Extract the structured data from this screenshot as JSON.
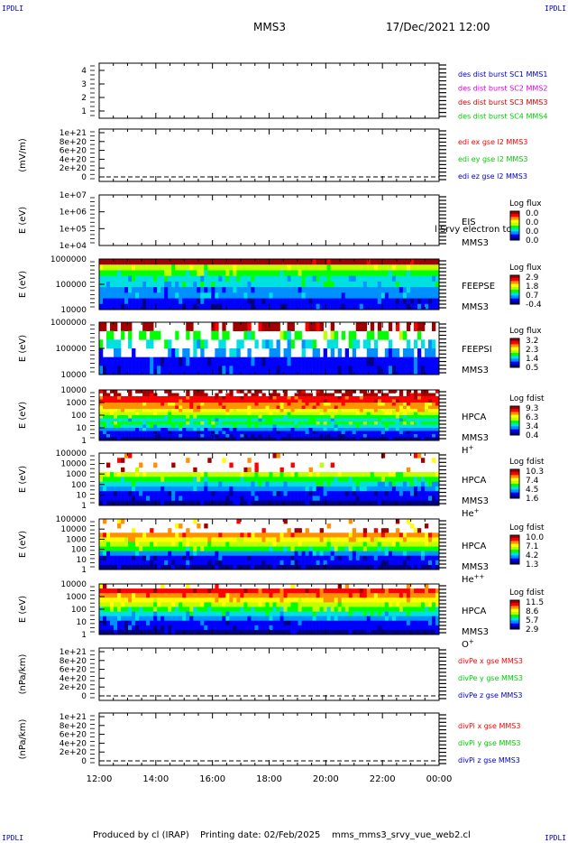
{
  "corner_label": "IPDLI",
  "header": {
    "title": "MMS3",
    "date": "17/Dec/2021 12:00"
  },
  "footer": {
    "produced": "Produced by cl (IRAP)",
    "printing": "Printing date: 02/Feb/2025",
    "script": "mms_mms3_srvy_vue_web2.cl"
  },
  "colors": {
    "red": "#ff0000",
    "green": "#00cc00",
    "blue": "#0000cc",
    "magenta": "#dd00dd",
    "dark_red": "#aa0000",
    "colorbar": [
      "#000080",
      "#0000ff",
      "#0090ff",
      "#00e0e0",
      "#00ff00",
      "#c0ff00",
      "#ffff00",
      "#ff9000",
      "#ff0000",
      "#a00000"
    ]
  },
  "chart_data": {
    "type": "heatmap",
    "x": {
      "ticks": [
        "12:00",
        "14:00",
        "16:00",
        "18:00",
        "20:00",
        "22:00",
        "00:00"
      ],
      "range_hours": [
        12,
        24
      ]
    },
    "panels": [
      {
        "kind": "labels",
        "yticks": [
          "4",
          "3",
          "2",
          "1"
        ],
        "range": [
          0.5,
          4.5
        ],
        "right_labels": [
          {
            "text": "des dist burst SC1 MMS1",
            "color": "#0000cc"
          },
          {
            "text": "des dist burst SC2 MMS2",
            "color": "#dd00dd"
          },
          {
            "text": "des dist burst SC3 MMS3",
            "color": "#cc0000"
          },
          {
            "text": "des dist burst SC4 MMS4",
            "color": "#00cc00"
          }
        ]
      },
      {
        "kind": "line",
        "ylabel": "(mV/m)",
        "yticks": [
          "1e+21",
          "8e+20",
          "6e+20",
          "4e+20",
          "2e+20",
          "0"
        ],
        "range": [
          0,
          1.1
        ],
        "right_labels": [
          {
            "text": "edi ex gse l2 MMS3",
            "color": "#ff0000"
          },
          {
            "text": "edi ey gse l2 MMS3",
            "color": "#00cc00"
          },
          {
            "text": "edi ez gse l2 MMS3",
            "color": "#0000cc"
          }
        ]
      },
      {
        "kind": "spec",
        "ylabel": "E (eV)",
        "yticks": [
          "1e+07",
          "1e+06",
          "1e+05",
          "1e+04"
        ],
        "right_labels": [
          {
            "text": "EIS",
            "color": "#000"
          },
          {
            "text": "MMS3",
            "color": "#000"
          }
        ],
        "overlay_text": "l Srvy electron to",
        "cb_title": "Log flux",
        "cb_ticks": [
          "0.0",
          "0.0",
          "0.0",
          "0.0"
        ],
        "profile": []
      },
      {
        "kind": "spec",
        "ylabel": "E (eV)",
        "yticks": [
          "1000000",
          "100000",
          "10000"
        ],
        "right_labels": [
          {
            "text": "FEEPSE",
            "color": "#000"
          },
          {
            "text": "MMS3",
            "color": "#000"
          }
        ],
        "cb_title": "Log flux",
        "cb_ticks": [
          "2.9",
          "1.8",
          "0.7",
          "-0.4"
        ],
        "profile": [
          1,
          1,
          2,
          2,
          3,
          3,
          4,
          5,
          9
        ],
        "sparse_rows": 0
      },
      {
        "kind": "spec",
        "ylabel": "E (eV)",
        "yticks": [
          "1000000",
          "100000",
          "10000"
        ],
        "right_labels": [
          {
            "text": "FEEPSI",
            "color": "#000"
          },
          {
            "text": "MMS3",
            "color": "#000"
          }
        ],
        "cb_title": "Log flux",
        "cb_ticks": [
          "3.2",
          "2.3",
          "1.4",
          "0.5"
        ],
        "profile": [
          1,
          1,
          2,
          3,
          4,
          9
        ],
        "sparse_rows": 4
      },
      {
        "kind": "spec",
        "ylabel": "E (eV)",
        "yticks": [
          "10000",
          "1000",
          "100",
          "10",
          "1"
        ],
        "right_labels": [
          {
            "text": "HPCA",
            "color": "#000"
          },
          {
            "text": "MMS3",
            "color": "#000"
          },
          {
            "text": "H",
            "sup": "+",
            "color": "#000"
          }
        ],
        "cb_title": "Log fdist",
        "cb_ticks": [
          "9.3",
          "6.3",
          "3.4",
          "0.4"
        ],
        "profile": [
          0,
          1,
          1,
          2,
          3,
          4,
          3,
          4,
          5,
          6,
          7,
          7,
          8,
          8,
          9,
          9
        ],
        "top_gaps": 2
      },
      {
        "kind": "spec",
        "ylabel": "E (eV)",
        "yticks": [
          "100000",
          "10000",
          "1000",
          "100",
          "10",
          "1"
        ],
        "right_labels": [
          {
            "text": "HPCA",
            "color": "#000"
          },
          {
            "text": "MMS3",
            "color": "#000"
          },
          {
            "text": "He",
            "sup": "+",
            "color": "#000"
          }
        ],
        "cb_title": "Log fdist",
        "cb_ticks": [
          "10.3",
          "7.4",
          "4.5",
          "1.6"
        ],
        "profile": [
          0,
          1,
          1,
          2,
          3,
          4,
          5,
          -1,
          -1,
          -1,
          -1
        ],
        "top_gaps": 1
      },
      {
        "kind": "spec",
        "ylabel": "E (eV)",
        "yticks": [
          "100000",
          "10000",
          "1000",
          "100",
          "10",
          "1"
        ],
        "right_labels": [
          {
            "text": "HPCA",
            "color": "#000"
          },
          {
            "text": "MMS3",
            "color": "#000"
          },
          {
            "text": "He",
            "sup": "++",
            "color": "#000"
          }
        ],
        "cb_title": "Log fdist",
        "cb_ticks": [
          "10.0",
          "7.1",
          "4.2",
          "1.3"
        ],
        "profile": [
          0,
          1,
          1,
          2,
          4,
          5,
          6,
          7,
          -1,
          -1,
          -1
        ],
        "top_gaps": 2
      },
      {
        "kind": "spec",
        "ylabel": "E (eV)",
        "yticks": [
          "10000",
          "1000",
          "100",
          "10",
          "1"
        ],
        "right_labels": [
          {
            "text": "HPCA",
            "color": "#000"
          },
          {
            "text": "MMS3",
            "color": "#000"
          },
          {
            "text": "O",
            "sup": "+",
            "color": "#000"
          }
        ],
        "cb_title": "Log fdist",
        "cb_ticks": [
          "11.5",
          "8.6",
          "5.7",
          "2.9"
        ],
        "profile": [
          0,
          1,
          1,
          2,
          3,
          4,
          5,
          6,
          7,
          8,
          -1
        ],
        "top_gaps": 1
      },
      {
        "kind": "line",
        "ylabel": "(nPa/km)",
        "yticks": [
          "1e+21",
          "8e+20",
          "6e+20",
          "4e+20",
          "2e+20",
          "0"
        ],
        "range": [
          0,
          1.1
        ],
        "right_labels": [
          {
            "text": "divPe x gse MMS3",
            "color": "#ff0000"
          },
          {
            "text": "divPe y gse MMS3",
            "color": "#00cc00"
          },
          {
            "text": "divPe z gse MMS3",
            "color": "#0000cc"
          }
        ]
      },
      {
        "kind": "line",
        "ylabel": "(nPa/km)",
        "yticks": [
          "1e+21",
          "8e+20",
          "6e+20",
          "4e+20",
          "2e+20",
          "0"
        ],
        "range": [
          0,
          1.1
        ],
        "right_labels": [
          {
            "text": "divPi x gse MMS3",
            "color": "#ff0000"
          },
          {
            "text": "divPi y gse MMS3",
            "color": "#00cc00"
          },
          {
            "text": "divPi z gse MMS3",
            "color": "#0000cc"
          }
        ]
      }
    ]
  }
}
